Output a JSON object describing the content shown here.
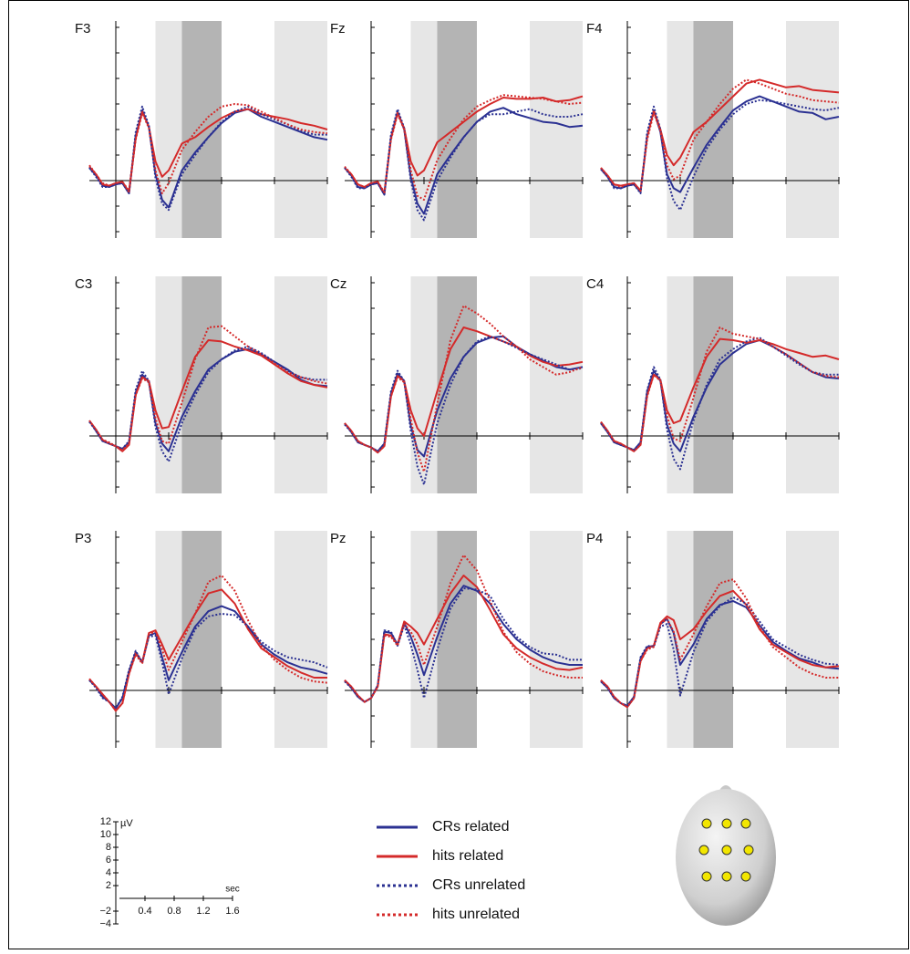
{
  "chart_data": {
    "type": "line",
    "x": [
      -0.2,
      -0.15,
      -0.1,
      -0.05,
      0,
      0.05,
      0.1,
      0.15,
      0.2,
      0.25,
      0.3,
      0.35,
      0.4,
      0.5,
      0.6,
      0.7,
      0.8,
      0.9,
      1.0,
      1.1,
      1.2,
      1.3,
      1.4,
      1.5,
      1.6
    ],
    "xlim": [
      -0.2,
      1.6
    ],
    "ylim": [
      -4.5,
      12.5
    ],
    "xticks": [
      0.4,
      0.8,
      1.2,
      1.6
    ],
    "yticks": [
      {
        "value": -4,
        "label": "−4"
      },
      {
        "value": -2,
        "label": "−2"
      },
      2,
      4,
      6,
      8,
      10,
      12
    ],
    "x_label": "sec",
    "y_label": "µV",
    "windows": [
      {
        "start": 0.3,
        "end": 0.5,
        "color": "#e6e6e6"
      },
      {
        "start": 0.5,
        "end": 0.8,
        "color": "#b4b4b4"
      },
      {
        "start": 1.2,
        "end": 1.6,
        "color": "#e6e6e6"
      }
    ],
    "series": [
      {
        "name": "CRs related",
        "color": "#2b3192",
        "dash": "none"
      },
      {
        "name": "hits related",
        "color": "#d42a2a",
        "dash": "none"
      },
      {
        "name": "CRs unrelated",
        "color": "#2b3192",
        "dash": "2 2"
      },
      {
        "name": "hits unrelated",
        "color": "#d42a2a",
        "dash": "2 2"
      }
    ],
    "panels": [
      {
        "title": "F3",
        "values": [
          [
            1,
            0.4,
            -0.4,
            -0.5,
            -0.3,
            -0.2,
            -1,
            3.5,
            5.5,
            4.2,
            0.5,
            -1.5,
            -2.1,
            0.8,
            2.2,
            3.4,
            4.5,
            5.3,
            5.6,
            5,
            4.6,
            4.2,
            3.8,
            3.4,
            3.2
          ],
          [
            1.1,
            0.5,
            -0.3,
            -0.4,
            -0.2,
            -0.1,
            -0.9,
            3.3,
            5.4,
            4.2,
            1.5,
            0.3,
            0.8,
            2.9,
            3.4,
            4.2,
            4.9,
            5.4,
            5.6,
            5.2,
            5,
            4.8,
            4.5,
            4.3,
            4
          ],
          [
            1,
            0.3,
            -0.5,
            -0.5,
            -0.3,
            -0.2,
            -1,
            3.8,
            5.8,
            4.3,
            0.2,
            -1.8,
            -2.3,
            0.5,
            2,
            3.4,
            4.6,
            5.4,
            5.8,
            5.2,
            4.8,
            4.4,
            3.9,
            3.6,
            3.6
          ],
          [
            1.2,
            0.5,
            -0.2,
            -0.4,
            -0.2,
            -0.1,
            -0.8,
            3.2,
            5.3,
            4.1,
            0.8,
            -1,
            -0.2,
            2.4,
            3.8,
            5,
            5.8,
            6,
            5.9,
            5.4,
            4.9,
            4.4,
            4,
            3.8,
            3.7
          ]
        ]
      },
      {
        "title": "Fz",
        "values": [
          [
            1,
            0.4,
            -0.5,
            -0.6,
            -0.3,
            -0.2,
            -1.1,
            3.4,
            5.4,
            4,
            0.3,
            -1.8,
            -2.6,
            0.5,
            2,
            3.4,
            4.6,
            5.4,
            5.7,
            5.2,
            4.9,
            4.6,
            4.5,
            4.2,
            4.3
          ],
          [
            1,
            0.5,
            -0.3,
            -0.5,
            -0.2,
            -0.1,
            -1,
            3.3,
            5.3,
            4.1,
            1.5,
            0.4,
            0.8,
            3,
            3.8,
            4.6,
            5.4,
            6,
            6.5,
            6.4,
            6.4,
            6.5,
            6.2,
            6.3,
            6.6
          ],
          [
            1,
            0.3,
            -0.6,
            -0.6,
            -0.3,
            -0.2,
            -1.1,
            3.6,
            5.6,
            4.1,
            0,
            -2.3,
            -3.1,
            0,
            1.8,
            3.4,
            4.6,
            5.2,
            5.2,
            5.4,
            5.6,
            5.2,
            5,
            5,
            5.2
          ],
          [
            1.1,
            0.5,
            -0.3,
            -0.5,
            -0.2,
            -0.1,
            -0.9,
            3.2,
            5.2,
            4,
            0.8,
            -1.2,
            -1.5,
            1.6,
            3.3,
            4.8,
            5.8,
            6.3,
            6.7,
            6.6,
            6.5,
            6.4,
            6.2,
            6,
            6.1
          ]
        ]
      },
      {
        "title": "F4",
        "values": [
          [
            0.9,
            0.3,
            -0.5,
            -0.6,
            -0.4,
            -0.3,
            -0.9,
            3.5,
            5.5,
            3.8,
            0.5,
            -0.6,
            -0.9,
            1,
            2.8,
            4.2,
            5.5,
            6.2,
            6.6,
            6.2,
            5.8,
            5.4,
            5.3,
            4.8,
            5
          ],
          [
            1,
            0.4,
            -0.3,
            -0.4,
            -0.3,
            -0.2,
            -0.8,
            3.4,
            5.5,
            4,
            2,
            1.2,
            1.8,
            3.8,
            4.6,
            5.6,
            6.6,
            7.6,
            7.9,
            7.6,
            7.3,
            7.4,
            7.1,
            7,
            6.9
          ],
          [
            0.9,
            0.3,
            -0.6,
            -0.6,
            -0.4,
            -0.3,
            -1,
            3.8,
            5.8,
            4,
            0.2,
            -1.6,
            -2.3,
            0.3,
            2.5,
            4,
            5.2,
            6,
            6.3,
            6.2,
            6,
            5.8,
            5.6,
            5.5,
            5.7
          ],
          [
            1,
            0.4,
            -0.3,
            -0.5,
            -0.3,
            -0.2,
            -0.8,
            3.2,
            5.3,
            3.9,
            1.2,
            0.1,
            0.4,
            3.2,
            4.6,
            6,
            7.2,
            7.9,
            7.6,
            7.2,
            6.8,
            6.6,
            6.3,
            6.2,
            6.1
          ]
        ]
      },
      {
        "title": "C3",
        "values": [
          [
            1.2,
            0.4,
            -0.4,
            -0.6,
            -0.8,
            -1,
            -0.5,
            3.4,
            4.8,
            4.2,
            1,
            -0.6,
            -1.2,
            1.5,
            3.5,
            5.2,
            6,
            6.6,
            6.8,
            6.4,
            5.8,
            5.2,
            4.4,
            4,
            3.9
          ],
          [
            1.2,
            0.5,
            -0.3,
            -0.6,
            -0.8,
            -1.2,
            -0.7,
            3.2,
            4.6,
            4.3,
            2,
            0.6,
            0.7,
            3.5,
            6.2,
            7.5,
            7.4,
            7,
            6.7,
            6.3,
            5.6,
            4.9,
            4.3,
            4,
            3.8
          ],
          [
            1.1,
            0.4,
            -0.4,
            -0.6,
            -0.8,
            -1,
            -0.4,
            3.6,
            5.1,
            4.3,
            0.7,
            -1.2,
            -2,
            1,
            3.2,
            5,
            6,
            6.7,
            7,
            6.5,
            5.8,
            5.1,
            4.6,
            4.4,
            4.4
          ],
          [
            1.2,
            0.5,
            -0.3,
            -0.5,
            -0.8,
            -1.1,
            -0.6,
            3.2,
            4.5,
            4.2,
            1.4,
            -0.4,
            -0.6,
            2.6,
            6,
            8.5,
            8.6,
            7.8,
            7,
            6.4,
            5.7,
            5,
            4.6,
            4.3,
            4.1
          ]
        ]
      },
      {
        "title": "Cz",
        "values": [
          [
            1,
            0.3,
            -0.5,
            -0.7,
            -0.9,
            -1.2,
            -0.6,
            3.3,
            4.9,
            4.3,
            0.8,
            -1.1,
            -1.6,
            2,
            4.5,
            6.2,
            7.3,
            7.7,
            7.8,
            7,
            6.4,
            5.9,
            5.4,
            5.2,
            5.4
          ],
          [
            1,
            0.4,
            -0.4,
            -0.7,
            -0.9,
            -1.3,
            -0.8,
            3.1,
            4.7,
            4.3,
            2,
            0.6,
            0,
            3.5,
            6.8,
            8.5,
            8.2,
            7.8,
            7.4,
            7,
            6.3,
            5.8,
            5.5,
            5.6,
            5.8
          ],
          [
            0.9,
            0.3,
            -0.5,
            -0.7,
            -0.9,
            -1.2,
            -0.6,
            3.5,
            5.1,
            4.3,
            0.4,
            -2.4,
            -3.8,
            1,
            4,
            6.2,
            7.4,
            7.8,
            7.4,
            6.9,
            6.4,
            6,
            5.6,
            5.2,
            5.3
          ],
          [
            1,
            0.4,
            -0.4,
            -0.7,
            -0.9,
            -1.3,
            -0.8,
            3.1,
            4.6,
            4.2,
            1.3,
            -1.3,
            -2.8,
            2.5,
            7.5,
            10.2,
            9.6,
            8.8,
            7.8,
            7,
            6,
            5.4,
            4.8,
            5,
            5.4
          ]
        ]
      },
      {
        "title": "C4",
        "values": [
          [
            1,
            0.3,
            -0.5,
            -0.7,
            -0.9,
            -1.1,
            -0.5,
            3.5,
            5.1,
            4.3,
            0.9,
            -0.6,
            -1.2,
            1.5,
            3.8,
            5.6,
            6.5,
            7.2,
            7.5,
            7,
            6.4,
            5.7,
            5,
            4.6,
            4.5
          ],
          [
            1.1,
            0.4,
            -0.4,
            -0.6,
            -0.9,
            -1.2,
            -0.7,
            3.2,
            4.8,
            4.4,
            2,
            1,
            1.2,
            3.8,
            6.2,
            7.6,
            7.5,
            7.3,
            7.5,
            7.2,
            6.8,
            6.5,
            6.2,
            6.3,
            6
          ],
          [
            1,
            0.3,
            -0.5,
            -0.7,
            -0.9,
            -1.1,
            -0.5,
            3.6,
            5.4,
            4.4,
            0.5,
            -1.8,
            -2.6,
            1.2,
            4,
            6,
            6.8,
            7.4,
            7.7,
            7,
            6.3,
            5.6,
            5,
            4.8,
            4.8
          ],
          [
            1.1,
            0.4,
            -0.4,
            -0.6,
            -0.9,
            -1.2,
            -0.7,
            3.1,
            4.8,
            4.3,
            1.6,
            -0.2,
            -0.4,
            3,
            6.6,
            8.5,
            8,
            7.8,
            7.6,
            7,
            6.4,
            5.7,
            5,
            4.7,
            4.6
          ]
        ]
      },
      {
        "title": "P3",
        "values": [
          [
            0.8,
            0.3,
            -0.5,
            -0.9,
            -1.4,
            -0.6,
            1.5,
            3,
            2.2,
            4.3,
            4.5,
            2.6,
            0.8,
            3,
            5,
            6.2,
            6.6,
            6.2,
            5,
            3.6,
            2.8,
            2.2,
            1.8,
            1.6,
            1.3
          ],
          [
            0.9,
            0.3,
            -0.3,
            -0.9,
            -1.6,
            -1,
            1.3,
            2.9,
            2.2,
            4.5,
            4.7,
            3.6,
            2.4,
            4.2,
            6,
            7.6,
            7.9,
            6.8,
            4.8,
            3.3,
            2.6,
            1.9,
            1.4,
            1,
            1
          ],
          [
            0.8,
            0.2,
            -0.6,
            -0.9,
            -1.4,
            -0.5,
            1.6,
            3.1,
            2.2,
            4.2,
            4.3,
            2.2,
            -0.3,
            2.5,
            4.8,
            5.8,
            6,
            5.9,
            5,
            3.8,
            3.1,
            2.6,
            2.4,
            2.2,
            1.8
          ],
          [
            0.9,
            0.3,
            -0.3,
            -0.9,
            -1.6,
            -1,
            1.3,
            2.8,
            2.1,
            4.4,
            4.6,
            3.2,
            1.6,
            3.8,
            6,
            8.5,
            9,
            7.8,
            5.5,
            3.5,
            2.4,
            1.6,
            1,
            0.7,
            0.6
          ]
        ]
      },
      {
        "title": "Pz",
        "values": [
          [
            0.8,
            0.2,
            -0.5,
            -0.9,
            -0.6,
            0.4,
            4.6,
            4.5,
            3.6,
            5.3,
            4.2,
            2.8,
            1.2,
            4.2,
            6.8,
            8.2,
            7.8,
            6.8,
            5.2,
            4,
            3.2,
            2.6,
            2.2,
            2,
            2
          ],
          [
            0.8,
            0.3,
            -0.4,
            -0.9,
            -0.6,
            0.3,
            4.4,
            4.3,
            3.6,
            5.4,
            5,
            4.5,
            3.6,
            5.6,
            7.6,
            9,
            8.1,
            6.3,
            4.4,
            3.3,
            2.6,
            2.1,
            1.7,
            1.6,
            1.8
          ],
          [
            0.7,
            0.2,
            -0.5,
            -0.9,
            -0.6,
            0.4,
            4.7,
            4.6,
            3.5,
            5.1,
            3.6,
            1.6,
            -0.6,
            3.2,
            6.4,
            8,
            7.9,
            7.4,
            5.6,
            4.2,
            3.4,
            2.9,
            2.8,
            2.4,
            2.4
          ],
          [
            0.8,
            0.3,
            -0.4,
            -0.9,
            -0.6,
            0.3,
            4.3,
            4.2,
            3.5,
            5.2,
            4.6,
            3.6,
            2,
            5,
            8.4,
            10.6,
            9.4,
            7,
            4.6,
            3,
            2.1,
            1.5,
            1.2,
            1,
            1
          ]
        ]
      },
      {
        "title": "P4",
        "values": [
          [
            0.7,
            0.2,
            -0.6,
            -1,
            -1.2,
            -0.5,
            2.5,
            3.4,
            3.5,
            5.2,
            5.6,
            4.5,
            2,
            3.6,
            5.6,
            6.7,
            7,
            6.5,
            5.1,
            3.8,
            3.1,
            2.5,
            2.2,
            1.8,
            1.7
          ],
          [
            0.8,
            0.3,
            -0.5,
            -1,
            -1.3,
            -0.6,
            2.3,
            3.3,
            3.5,
            5.3,
            5.8,
            5.5,
            4,
            4.8,
            6.2,
            7.4,
            7.8,
            6.7,
            4.8,
            3.6,
            3,
            2.4,
            2,
            1.8,
            1.9
          ],
          [
            0.7,
            0.2,
            -0.6,
            -1,
            -1.2,
            -0.5,
            2.6,
            3.5,
            3.4,
            5,
            5.2,
            3.2,
            -0.4,
            3,
            5.4,
            6.6,
            7.3,
            6.8,
            5.4,
            4,
            3.4,
            2.8,
            2.4,
            2.1,
            2
          ],
          [
            0.8,
            0.3,
            -0.5,
            -1,
            -1.3,
            -0.6,
            2.3,
            3.2,
            3.4,
            5.2,
            5.6,
            4.6,
            2.4,
            4.4,
            6.6,
            8.4,
            8.7,
            7.2,
            5,
            3.4,
            2.6,
            1.8,
            1.3,
            1,
            1
          ]
        ]
      }
    ]
  }
}
